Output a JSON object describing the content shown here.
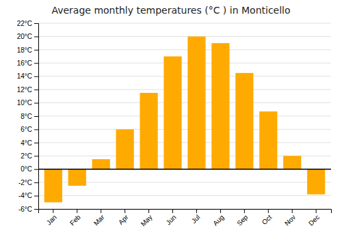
{
  "chart_data": {
    "type": "bar",
    "title": "Average monthly temperatures (°C ) in Monticello",
    "categories": [
      "Jan",
      "Feb",
      "Mar",
      "Apr",
      "May",
      "Jun",
      "Jul",
      "Aug",
      "Sep",
      "Oct",
      "Nov",
      "Dec"
    ],
    "values": [
      -5.0,
      -2.5,
      1.5,
      6.0,
      11.5,
      17.0,
      20.0,
      19.0,
      14.5,
      8.7,
      2.0,
      -3.8
    ],
    "color": "#FFAA00",
    "ylim": [
      -6,
      22
    ],
    "yticks": [
      {
        "value": -6,
        "label": "-6°C"
      },
      {
        "value": -4,
        "label": "-4°C"
      },
      {
        "value": -2,
        "label": "-2°C"
      },
      {
        "value": 0,
        "label": "0°C"
      },
      {
        "value": 2,
        "label": "2°C"
      },
      {
        "value": 4,
        "label": "4°C"
      },
      {
        "value": 6,
        "label": "6°C"
      },
      {
        "value": 8,
        "label": "8°C"
      },
      {
        "value": 10,
        "label": "10°C"
      },
      {
        "value": 12,
        "label": "12°C"
      },
      {
        "value": 14,
        "label": "14°C"
      },
      {
        "value": 16,
        "label": "16°C"
      },
      {
        "value": 18,
        "label": "18°C"
      },
      {
        "value": 20,
        "label": "20°C"
      },
      {
        "value": 22,
        "label": "22°C"
      }
    ],
    "grid": true
  }
}
